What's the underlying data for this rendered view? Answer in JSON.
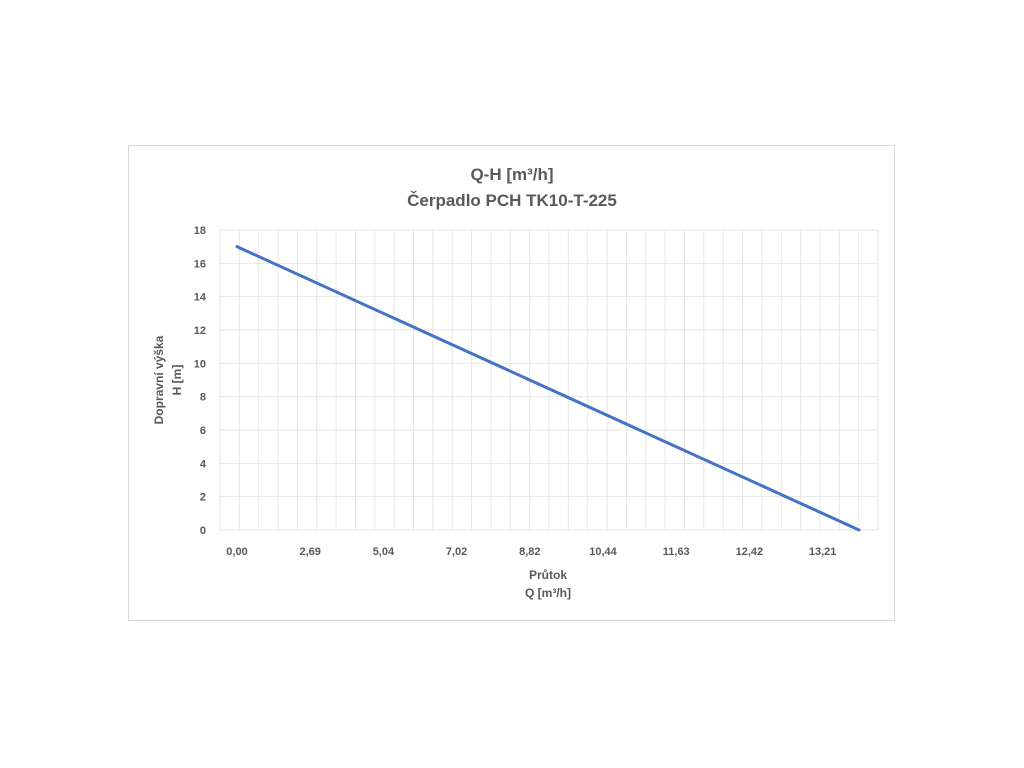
{
  "chart_data": {
    "type": "line",
    "title": "Q-H  [m³/h]",
    "subtitle": "Čerpadlo PCH TK10-T-225",
    "xlabel": "Průtok",
    "xlabel_unit": "Q [m³/h]",
    "ylabel": "Dopravní výška",
    "ylabel_unit": "H [m]",
    "ylim": [
      0,
      18
    ],
    "yticks": [
      0,
      2,
      4,
      6,
      8,
      10,
      12,
      14,
      16,
      18
    ],
    "xtick_labels": [
      "0,00",
      "2,69",
      "5,04",
      "7,02",
      "8,82",
      "10,44",
      "11,63",
      "12,42",
      "13,21"
    ],
    "x_range": [
      0,
      8.5
    ],
    "grid": true,
    "line_color": "#4472c4",
    "grid_color": "#e6e6e6",
    "series": [
      {
        "x": [
          0,
          8.5
        ],
        "y": [
          17,
          0
        ]
      }
    ]
  }
}
